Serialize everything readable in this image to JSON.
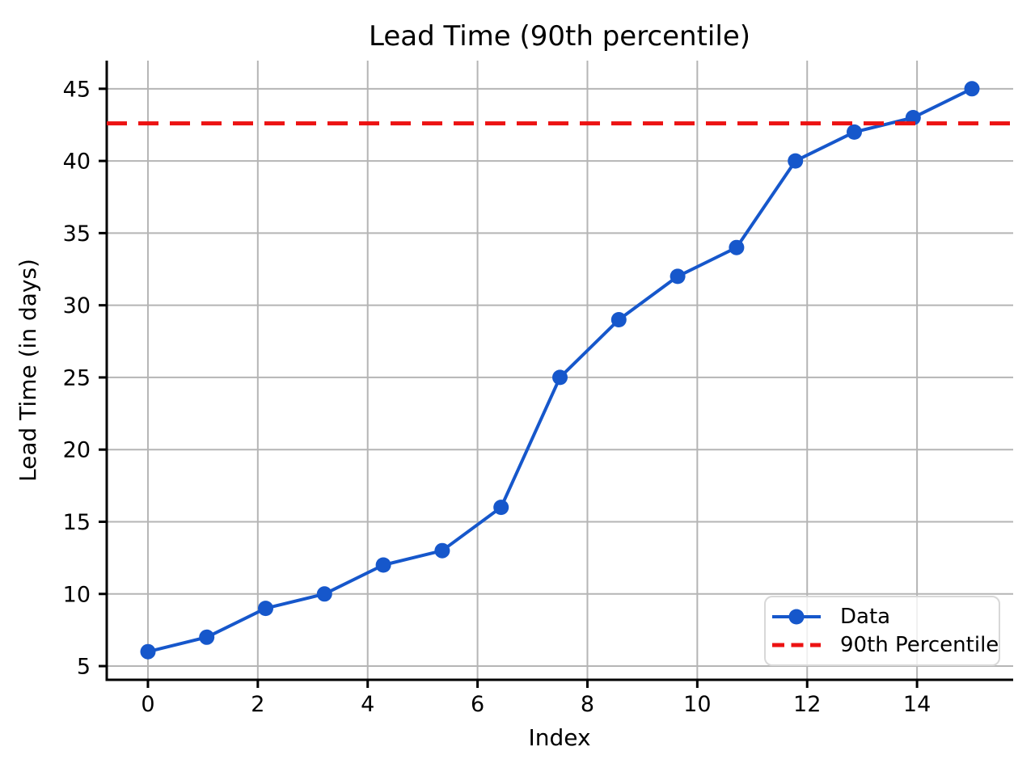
{
  "chart_data": {
    "type": "line",
    "title": "Lead Time (90th percentile)",
    "xlabel": "Index",
    "ylabel": "Lead Time (in days)",
    "x": [
      0,
      1.0714,
      2.1429,
      3.2143,
      4.2857,
      5.3571,
      6.4286,
      7.5,
      8.5714,
      9.6429,
      10.7143,
      11.7857,
      12.8571,
      13.9286,
      15
    ],
    "series": [
      {
        "name": "Data",
        "style": "solid-line-with-circle-markers",
        "color": "#1657cb",
        "values": [
          6,
          7,
          9,
          10,
          12,
          13,
          16,
          25,
          29,
          32,
          34,
          40,
          42,
          43,
          45
        ]
      },
      {
        "name": "90th Percentile",
        "style": "horizontal-dashed-line",
        "color": "#ec1212",
        "value": 42.6
      }
    ],
    "xticks": [
      0,
      2,
      4,
      6,
      8,
      10,
      12,
      14
    ],
    "yticks": [
      5,
      10,
      15,
      20,
      25,
      30,
      35,
      40,
      45
    ],
    "xlim": [
      -0.75,
      15.75
    ],
    "ylim": [
      4.05,
      46.95
    ],
    "grid": true,
    "grid_color": "#b5b5b5",
    "axis_color": "#000000",
    "legend_position": "lower right",
    "legend_entries": [
      "Data",
      "90th Percentile"
    ]
  }
}
